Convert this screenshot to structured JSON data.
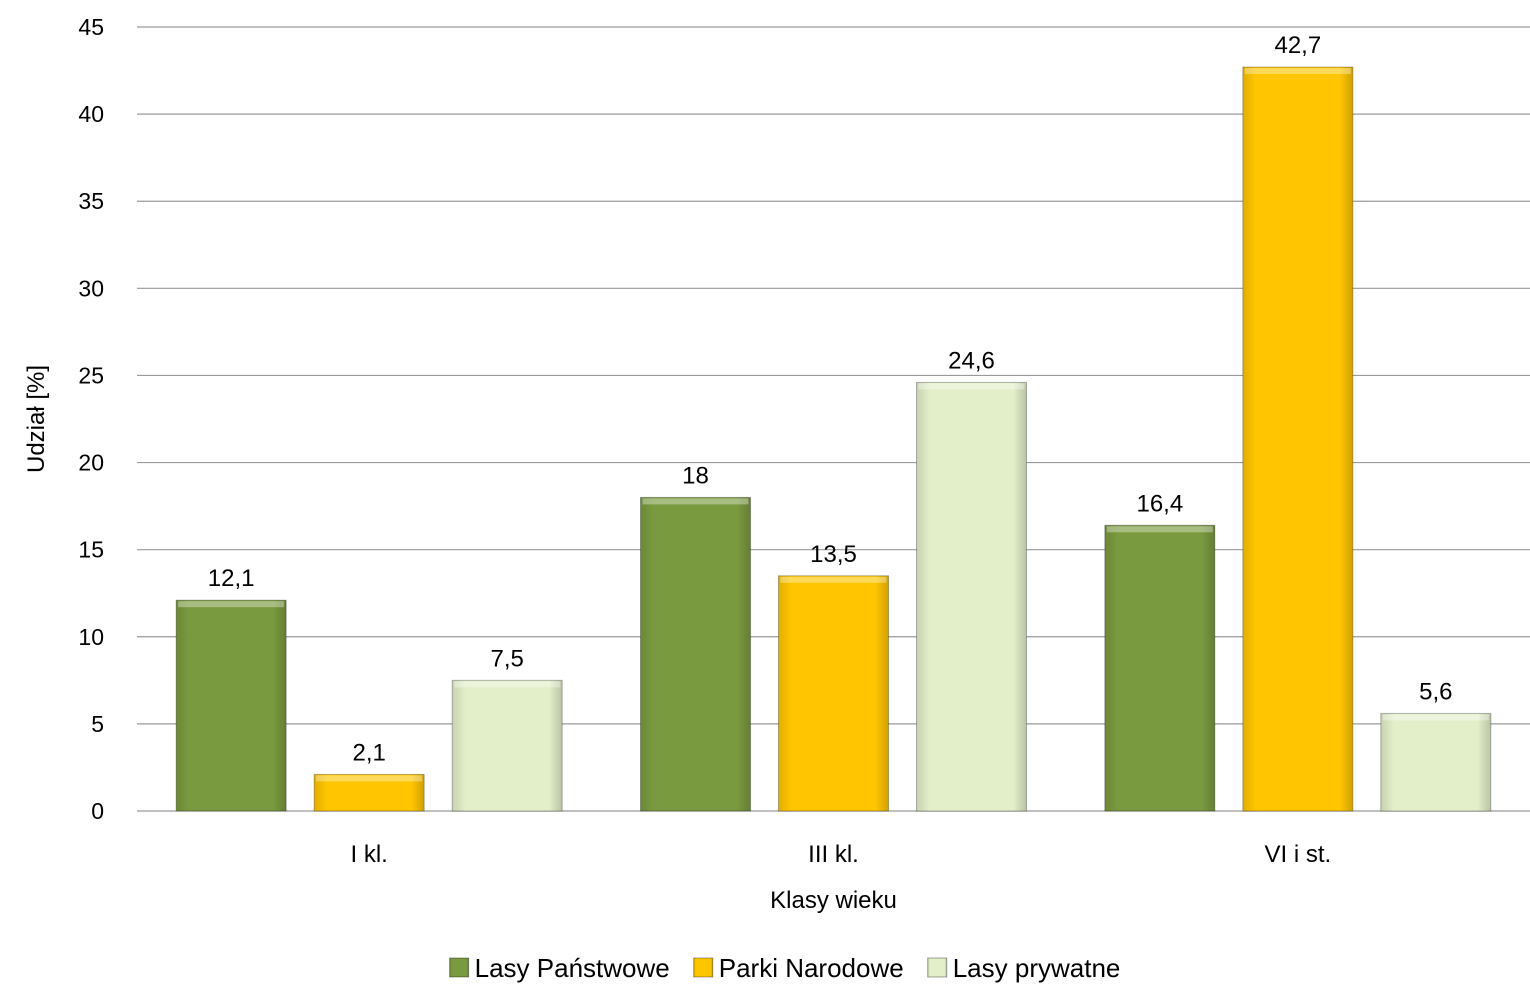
{
  "chart_data": {
    "type": "bar",
    "title": "",
    "xlabel": "Klasy wieku",
    "ylabel": "Udział [%]",
    "ylim": [
      0,
      45
    ],
    "yticks": [
      0,
      5,
      10,
      15,
      20,
      25,
      30,
      35,
      40,
      45
    ],
    "grid": true,
    "legend_position": "bottom",
    "categories": [
      "I kl.",
      "III kl.",
      "VI i st."
    ],
    "series": [
      {
        "name": "Lasy Państwowe",
        "values": [
          12.1,
          18,
          16.4
        ],
        "labels": [
          "12,1",
          "18",
          "16,4"
        ],
        "color": "#7a9a3f"
      },
      {
        "name": "Parki Narodowe",
        "values": [
          2.1,
          13.5,
          42.7
        ],
        "labels": [
          "2,1",
          "13,5",
          "42,7"
        ],
        "color": "#ffc600"
      },
      {
        "name": "Lasy prywatne",
        "values": [
          7.5,
          24.6,
          5.6
        ],
        "labels": [
          "7,5",
          "24,6",
          "5,6"
        ],
        "color": "#e2efc9"
      }
    ]
  }
}
